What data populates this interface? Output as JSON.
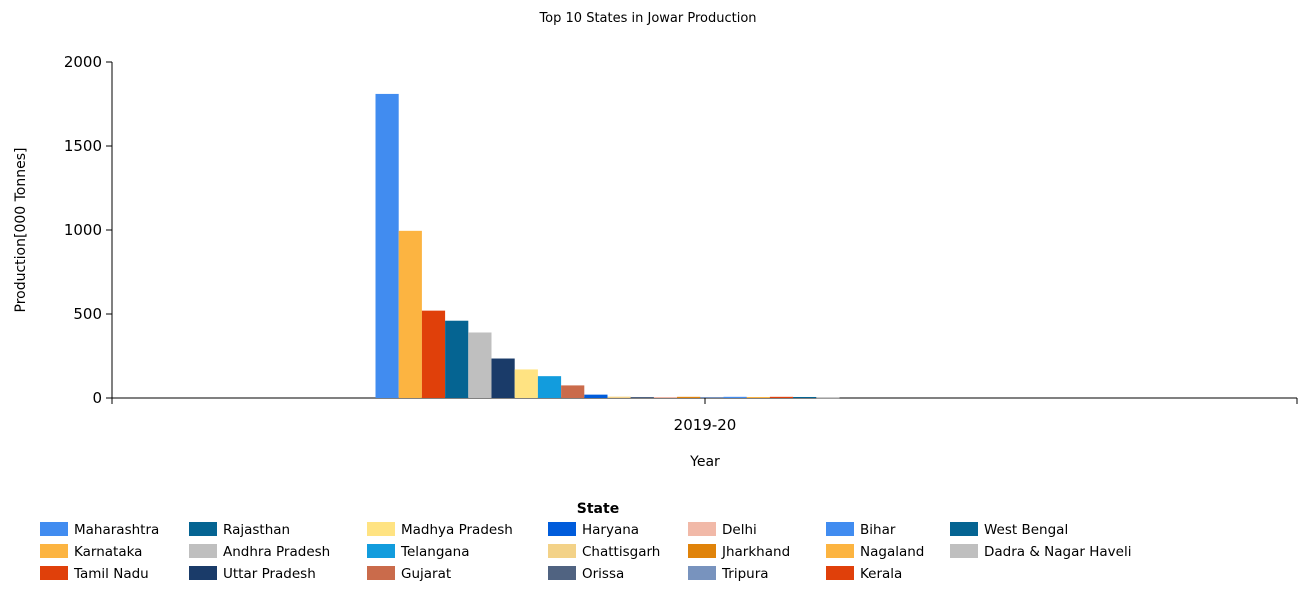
{
  "chart_data": {
    "type": "bar",
    "title": "Top 10 States in Jowar Production",
    "xlabel": "Year",
    "ylabel": "Production[000 Tonnes]",
    "categories": [
      "2019-20"
    ],
    "ylim": [
      0,
      2000
    ],
    "yticks": [
      0,
      500,
      1000,
      1500,
      2000
    ],
    "grid": false,
    "legend_title": "State",
    "legend_position": "bottom",
    "series": [
      {
        "name": "Maharashtra",
        "values": [
          1810
        ],
        "color": "#418cf0"
      },
      {
        "name": "Karnataka",
        "values": [
          995
        ],
        "color": "#fcb441"
      },
      {
        "name": "Tamil Nadu",
        "values": [
          520
        ],
        "color": "#e0400a"
      },
      {
        "name": "Rajasthan",
        "values": [
          460
        ],
        "color": "#056492"
      },
      {
        "name": "Andhra Pradesh",
        "values": [
          390
        ],
        "color": "#bfbfbf"
      },
      {
        "name": "Uttar Pradesh",
        "values": [
          235
        ],
        "color": "#1a3b69"
      },
      {
        "name": "Madhya Pradesh",
        "values": [
          170
        ],
        "color": "#ffe382"
      },
      {
        "name": "Telangana",
        "values": [
          130
        ],
        "color": "#129cdd"
      },
      {
        "name": "Gujarat",
        "values": [
          75
        ],
        "color": "#ca6b4b"
      },
      {
        "name": "Haryana",
        "values": [
          20
        ],
        "color": "#005cdb"
      },
      {
        "name": "Chattisgarh",
        "values": [
          8
        ],
        "color": "#f3d288"
      },
      {
        "name": "Orissa",
        "values": [
          6
        ],
        "color": "#506381"
      },
      {
        "name": "Delhi",
        "values": [
          6
        ],
        "color": "#f1b9a8"
      },
      {
        "name": "Jharkhand",
        "values": [
          7
        ],
        "color": "#e0830a"
      },
      {
        "name": "Tripura",
        "values": [
          6
        ],
        "color": "#7893be"
      },
      {
        "name": "Bihar",
        "values": [
          7
        ],
        "color": "#418cf0"
      },
      {
        "name": "Nagaland",
        "values": [
          6
        ],
        "color": "#fcb441"
      },
      {
        "name": "Kerala",
        "values": [
          7
        ],
        "color": "#e0400a"
      },
      {
        "name": "West Bengal",
        "values": [
          6
        ],
        "color": "#056492"
      },
      {
        "name": "Dadra & Nagar Haveli",
        "values": [
          5
        ],
        "color": "#bfbfbf"
      }
    ]
  }
}
